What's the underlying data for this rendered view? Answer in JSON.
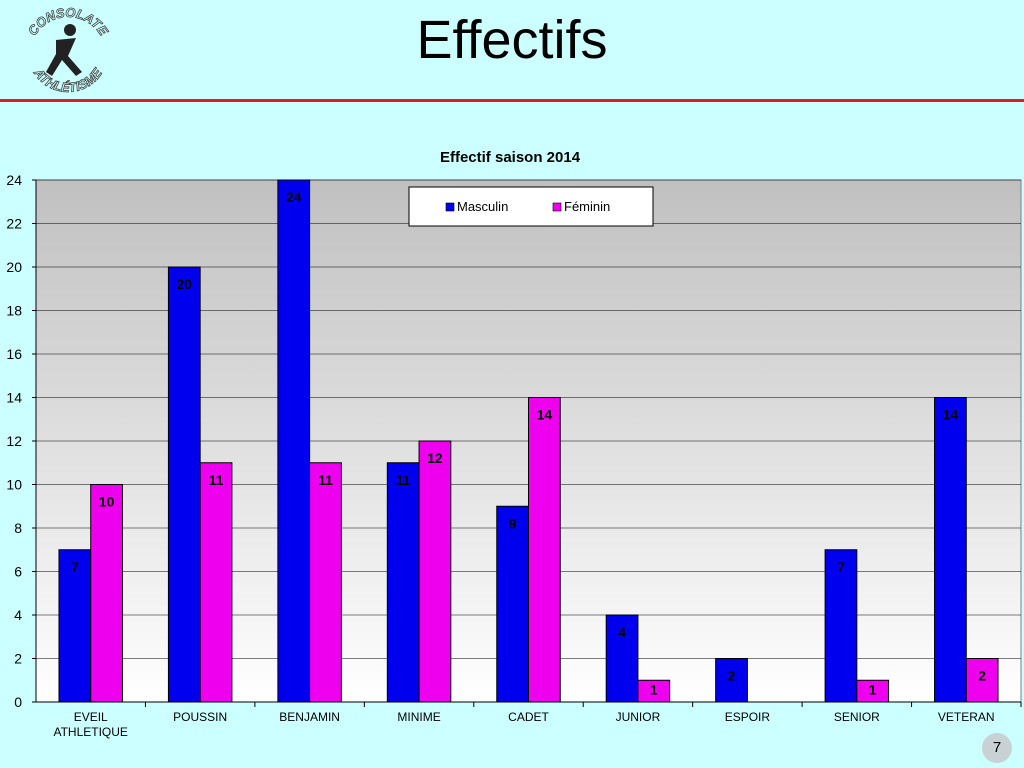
{
  "slide": {
    "title": "Effectifs",
    "page_number": "7",
    "logo_text_top": "CONSOLATE",
    "logo_text_bottom": "ATHLÉTISME"
  },
  "colors": {
    "background": "#ccffff",
    "rule": "#e41a1a",
    "masculin": "#0000ee",
    "feminin": "#ee00ee"
  },
  "chart_data": {
    "type": "bar",
    "title": "Effectif saison 2014",
    "categories": [
      "EVEIL\nATHLETIQUE",
      "POUSSIN",
      "BENJAMIN",
      "MINIME",
      "CADET",
      "JUNIOR",
      "ESPOIR",
      "SENIOR",
      "VETERAN"
    ],
    "series": [
      {
        "name": "Masculin",
        "values": [
          7,
          20,
          24,
          11,
          9,
          4,
          2,
          7,
          14
        ]
      },
      {
        "name": "Féminin",
        "values": [
          10,
          11,
          11,
          12,
          14,
          1,
          null,
          1,
          2
        ]
      }
    ],
    "ylim": [
      0,
      24
    ],
    "yticks": [
      0,
      2,
      4,
      6,
      8,
      10,
      12,
      14,
      16,
      18,
      20,
      22,
      24
    ],
    "grid": true,
    "legend_position": "top-center"
  }
}
